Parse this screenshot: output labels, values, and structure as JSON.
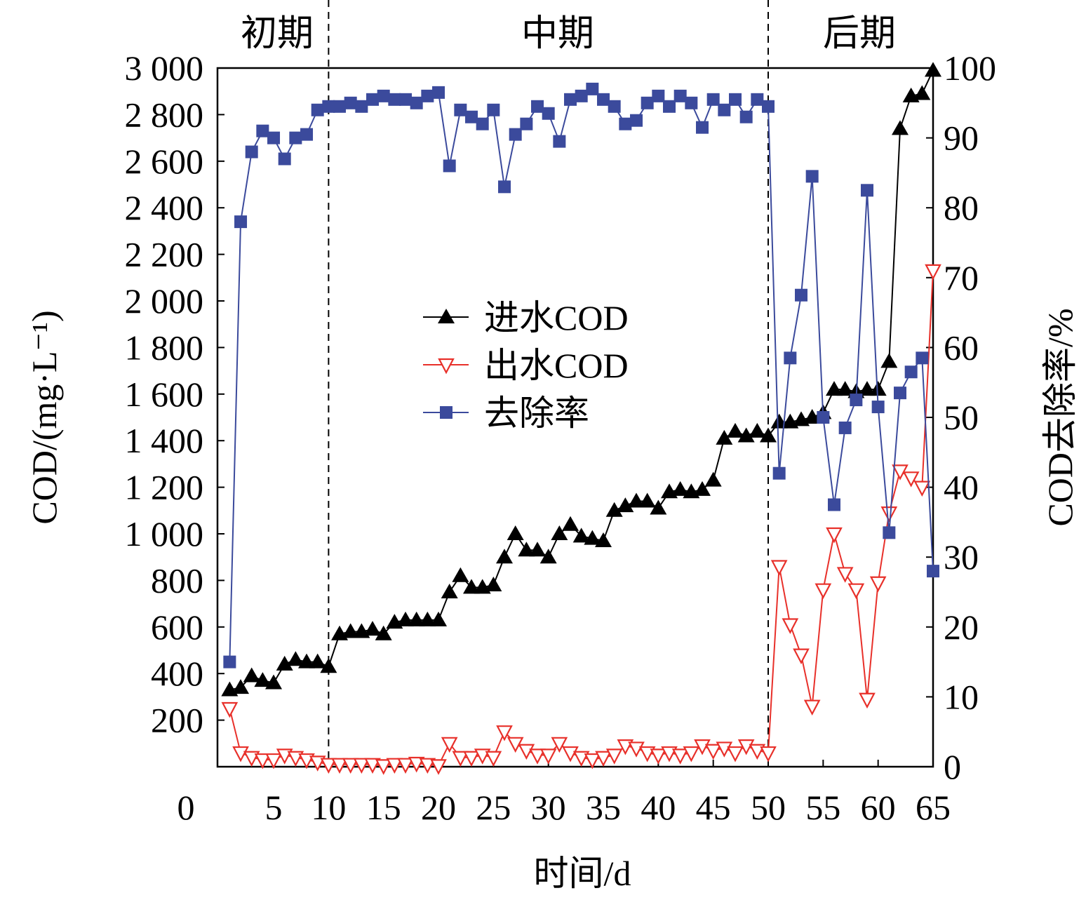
{
  "chart_data": {
    "type": "line",
    "xlabel": "时间/d",
    "ylabel": "COD/(mg·L⁻¹)",
    "y2label": "COD去除率/%",
    "xlim": [
      0,
      65
    ],
    "ylim": [
      0,
      3000
    ],
    "y2lim": [
      0,
      100
    ],
    "xticks": [
      0,
      5,
      10,
      15,
      20,
      25,
      30,
      35,
      40,
      45,
      50,
      55,
      60,
      65
    ],
    "yticks": [
      200,
      400,
      600,
      800,
      1000,
      1200,
      1400,
      1600,
      1800,
      2000,
      2200,
      2400,
      2600,
      2800,
      3000
    ],
    "ytick_labels": [
      "200",
      "400",
      "600",
      "800",
      "1 000",
      "1 200",
      "1 400",
      "1 600",
      "1 800",
      "2 000",
      "2 200",
      "2 400",
      "2 600",
      "2 800",
      "3 000"
    ],
    "y2ticks": [
      0,
      10,
      20,
      30,
      40,
      50,
      60,
      70,
      80,
      90,
      100
    ],
    "phase_dividers": [
      10,
      50
    ],
    "phases": [
      "初期",
      "中期",
      "后期"
    ],
    "legend_position": "center-left",
    "x": [
      1,
      2,
      3,
      4,
      5,
      6,
      7,
      8,
      9,
      10,
      11,
      12,
      13,
      14,
      15,
      16,
      17,
      18,
      19,
      20,
      21,
      22,
      23,
      24,
      25,
      26,
      27,
      28,
      29,
      30,
      31,
      32,
      33,
      34,
      35,
      36,
      37,
      38,
      39,
      40,
      41,
      42,
      43,
      44,
      45,
      46,
      47,
      48,
      49,
      50,
      51,
      52,
      53,
      54,
      55,
      56,
      57,
      58,
      59,
      60,
      61,
      62,
      63,
      64,
      65
    ],
    "series": [
      {
        "name": "进水COD",
        "axis": "left",
        "color": "#000000",
        "marker": "triangle-up",
        "values": [
          330,
          340,
          390,
          370,
          360,
          440,
          460,
          450,
          450,
          430,
          570,
          580,
          580,
          590,
          570,
          620,
          630,
          630,
          630,
          630,
          750,
          820,
          770,
          770,
          780,
          900,
          1000,
          930,
          930,
          900,
          1000,
          1040,
          990,
          980,
          970,
          1100,
          1120,
          1140,
          1140,
          1110,
          1180,
          1190,
          1180,
          1190,
          1230,
          1410,
          1440,
          1420,
          1440,
          1420,
          1480,
          1480,
          1490,
          1500,
          1520,
          1620,
          1620,
          1610,
          1620,
          1620,
          1740,
          2740,
          2880,
          2890,
          2990
        ]
      },
      {
        "name": "出水COD",
        "axis": "left",
        "color": "#e8302a",
        "marker": "triangle-down-open",
        "values": [
          250,
          60,
          40,
          30,
          30,
          50,
          40,
          30,
          20,
          10,
          10,
          10,
          10,
          10,
          5,
          10,
          10,
          15,
          10,
          5,
          100,
          40,
          40,
          50,
          40,
          150,
          100,
          70,
          50,
          50,
          100,
          60,
          40,
          30,
          40,
          50,
          90,
          80,
          60,
          50,
          60,
          50,
          60,
          90,
          70,
          80,
          60,
          90,
          70,
          60,
          860,
          610,
          480,
          260,
          760,
          1000,
          830,
          760,
          290,
          790,
          1090,
          1270,
          1240,
          1200,
          2130
        ]
      },
      {
        "name": "去除率",
        "axis": "right",
        "color": "#3b4a9c",
        "marker": "square",
        "values": [
          15,
          78,
          88,
          91,
          90,
          87,
          90,
          90.5,
          94,
          94.5,
          94.5,
          95,
          94.5,
          95.5,
          96,
          95.5,
          95.5,
          95,
          96,
          96.5,
          86,
          94,
          93,
          92,
          94,
          83,
          90.5,
          92,
          94.5,
          93.5,
          89.5,
          95.5,
          96,
          97,
          95.5,
          94.5,
          92,
          92.5,
          95,
          96,
          94.5,
          96,
          95,
          91.5,
          95.5,
          94,
          95.5,
          93,
          95.5,
          94.5,
          42,
          58.5,
          67.5,
          84.5,
          50,
          37.5,
          48.5,
          52.5,
          82.5,
          51.5,
          33.5,
          53.5,
          56.5,
          58.5,
          28
        ]
      }
    ]
  }
}
